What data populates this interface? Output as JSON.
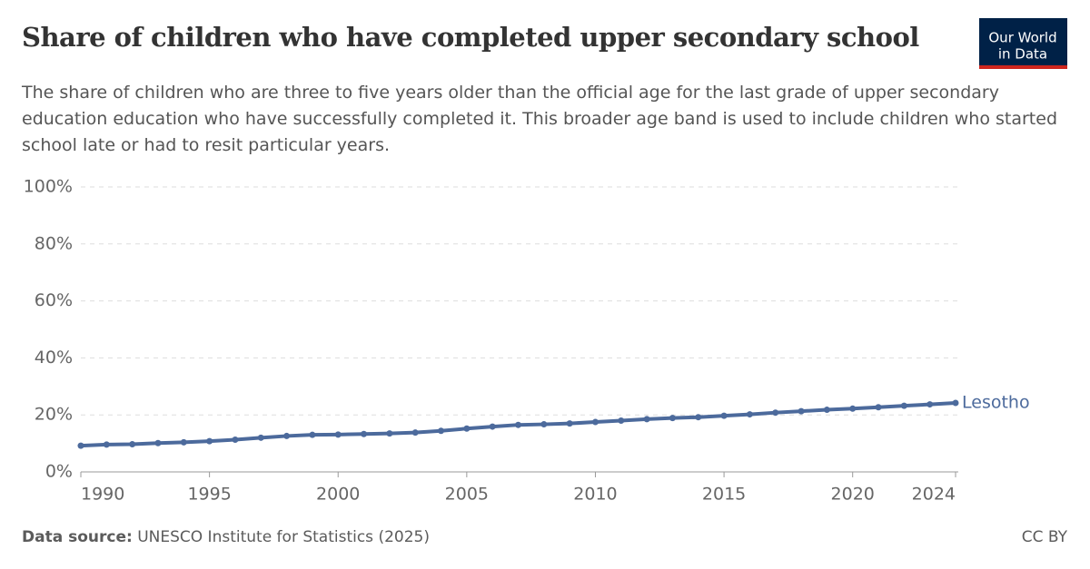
{
  "chart_data": {
    "type": "line",
    "title": "Share of children who have completed upper secondary school",
    "subtitle": "The share of children who are three to five years older than the official age for the last grade of upper secondary education education who have successfully completed it. This broader age band is used to include children who started school late or had to resit particular years.",
    "logo": [
      "Our World",
      "in Data"
    ],
    "source_label": "Data source:",
    "source": "UNESCO Institute for Statistics (2025)",
    "license": "CC BY",
    "x": [
      1990,
      1991,
      1992,
      1993,
      1994,
      1995,
      1996,
      1997,
      1998,
      1999,
      2000,
      2001,
      2002,
      2003,
      2004,
      2005,
      2006,
      2007,
      2008,
      2009,
      2010,
      2011,
      2012,
      2013,
      2014,
      2015,
      2016,
      2017,
      2018,
      2019,
      2020,
      2021,
      2022,
      2023,
      2024
    ],
    "series": [
      {
        "name": "Lesotho",
        "color": "#4c6a9c",
        "values": [
          9.2,
          9.6,
          9.7,
          10.1,
          10.4,
          10.8,
          11.3,
          12.0,
          12.6,
          13.0,
          13.1,
          13.3,
          13.5,
          13.8,
          14.4,
          15.2,
          15.9,
          16.5,
          16.7,
          17.0,
          17.5,
          18.0,
          18.5,
          18.9,
          19.2,
          19.7,
          20.2,
          20.8,
          21.3,
          21.8,
          22.2,
          22.7,
          23.2,
          23.7,
          24.2
        ]
      }
    ],
    "xlim": [
      1990,
      2024
    ],
    "xticks": [
      1990,
      1995,
      2000,
      2005,
      2010,
      2015,
      2020,
      2024
    ],
    "ylim": [
      0,
      100
    ],
    "yticks": [
      {
        "value": 0,
        "label": "0%"
      },
      {
        "value": 20,
        "label": "20%"
      },
      {
        "value": 40,
        "label": "40%"
      },
      {
        "value": 60,
        "label": "60%"
      },
      {
        "value": 80,
        "label": "80%"
      },
      {
        "value": 100,
        "label": "100%"
      }
    ],
    "grid": true
  }
}
